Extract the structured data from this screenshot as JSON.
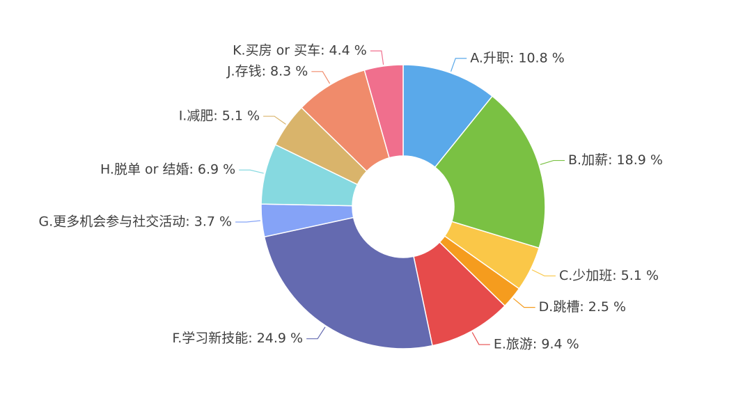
{
  "chart_data": {
    "type": "pie",
    "variant": "donut",
    "legend": "none",
    "slices": [
      {
        "name": "A.升职",
        "value": 10.8,
        "label": "A.升职: 10.8 %",
        "color": "#5aa9ea"
      },
      {
        "name": "B.加薪",
        "value": 18.9,
        "label": "B.加薪: 18.9 %",
        "color": "#7ac143"
      },
      {
        "name": "C.少加班",
        "value": 5.1,
        "label": "C.少加班: 5.1 %",
        "color": "#fac748"
      },
      {
        "name": "D.跳槽",
        "value": 2.5,
        "label": "D.跳槽: 2.5 %",
        "color": "#f59c1e"
      },
      {
        "name": "E.旅游",
        "value": 9.4,
        "label": "E.旅游: 9.4 %",
        "color": "#e64b4b"
      },
      {
        "name": "F.学习新技能",
        "value": 24.9,
        "label": "F.学习新技能: 24.9 %",
        "color": "#646ab0"
      },
      {
        "name": "G.更多机会参与社交活动",
        "value": 3.7,
        "label": "G.更多机会参与社交活动: 3.7 %",
        "color": "#85a3f7"
      },
      {
        "name": "H.脱单 or 结婚",
        "value": 6.9,
        "label": "H.脱单 or 结婚: 6.9 %",
        "color": "#86d9e0"
      },
      {
        "name": "I.减肥",
        "value": 5.1,
        "label": "I.减肥: 5.1 %",
        "color": "#d9b46b"
      },
      {
        "name": "J.存钱",
        "value": 8.3,
        "label": "J.存钱: 8.3 %",
        "color": "#f08b6b"
      },
      {
        "name": "K.买房 or 买车",
        "value": 4.4,
        "label": "K.买房 or 买车: 4.4 %",
        "color": "#f06f8d"
      }
    ]
  }
}
